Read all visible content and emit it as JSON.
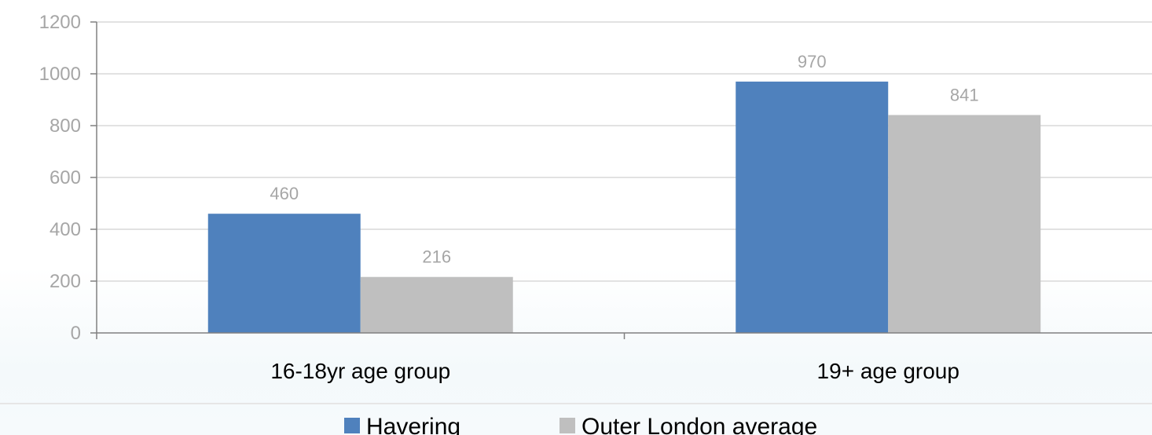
{
  "chart_data": {
    "type": "bar",
    "categories": [
      "16-18yr age group",
      "19+ age group"
    ],
    "series": [
      {
        "name": "Havering",
        "values": [
          460,
          970
        ],
        "color": "#4f81bd"
      },
      {
        "name": "Outer London average",
        "values": [
          216,
          841
        ],
        "color": "#bfbfbf"
      }
    ],
    "data_labels": [
      [
        "460",
        "970"
      ],
      [
        "216",
        "841"
      ]
    ],
    "y_ticks": [
      "0",
      "200",
      "400",
      "600",
      "800",
      "1000",
      "1200"
    ],
    "title": "",
    "xlabel": "",
    "ylabel": "",
    "ylim": [
      0,
      1200
    ],
    "grid": true,
    "legend_position": "bottom",
    "colors": {
      "grid": "#d9d9d9",
      "axis": "#808080",
      "tick_text": "#a6a6a6",
      "category_text": "#000000"
    }
  }
}
